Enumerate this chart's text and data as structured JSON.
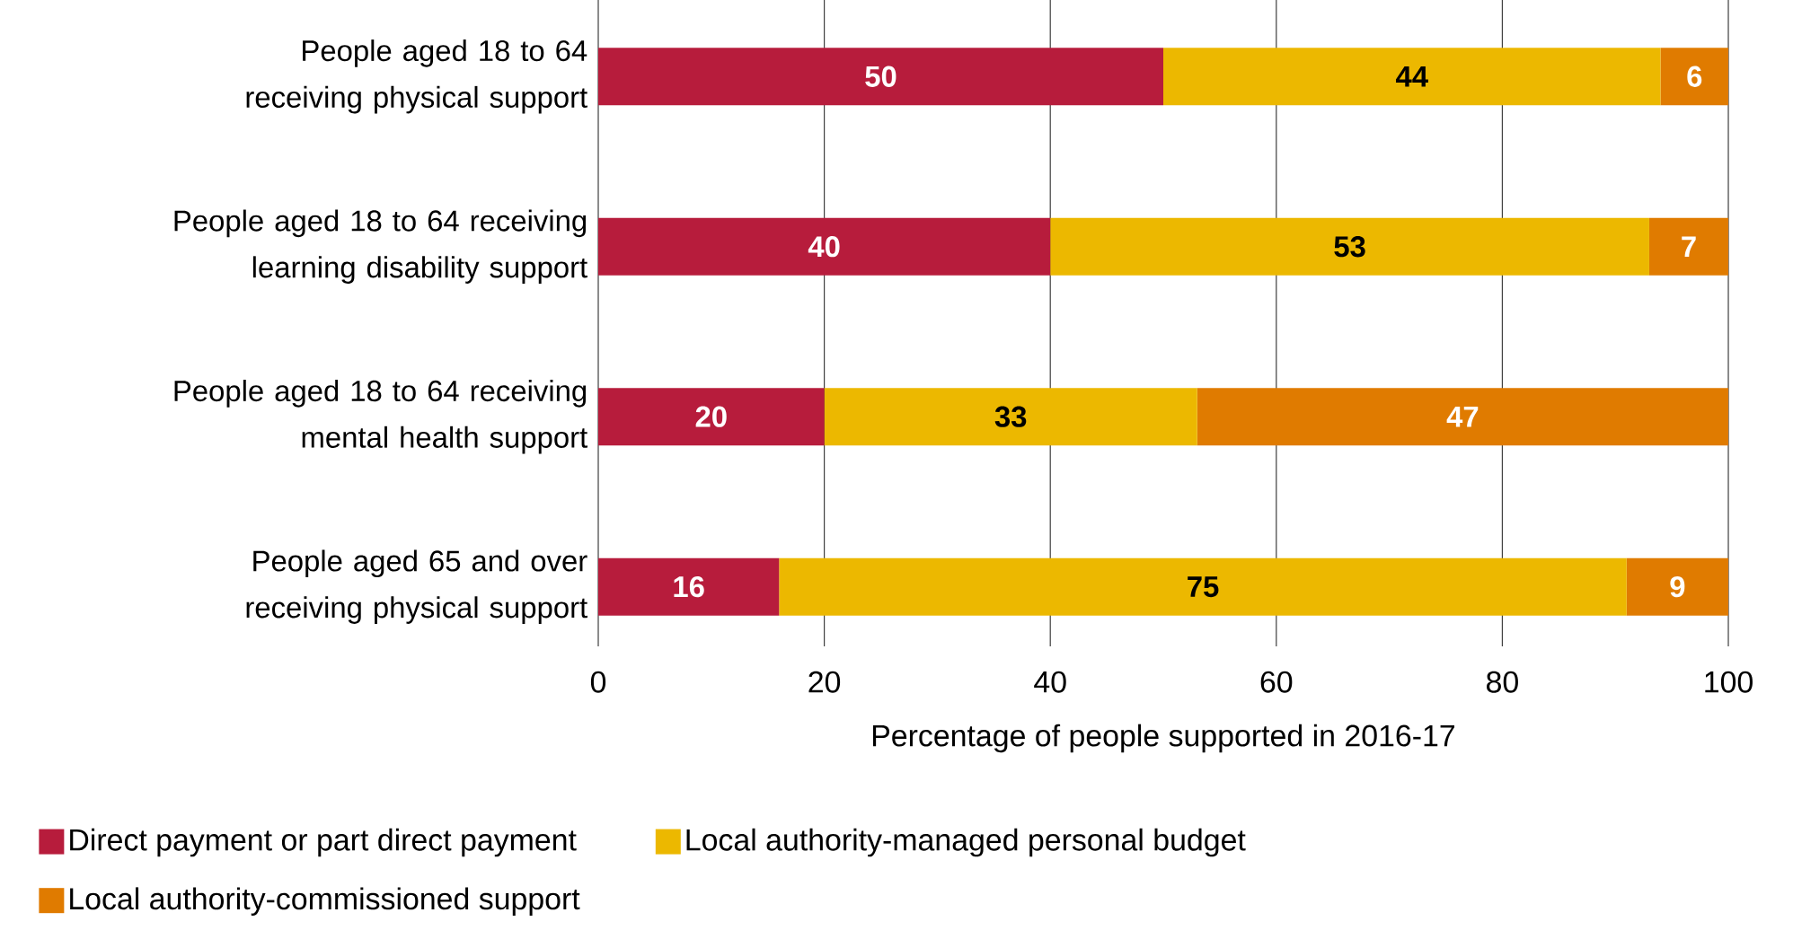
{
  "chart_data": {
    "type": "bar",
    "orientation": "horizontal",
    "stacked": true,
    "categories": [
      "People aged 18 to 64 receiving physical support",
      "People aged 18 to 64 receiving learning disability support",
      "People aged 18 to 64 receiving mental health support",
      "People aged 65 and over receiving physical support"
    ],
    "series": [
      {
        "name": "Direct payment or part direct payment",
        "color": "#b71c3c",
        "values": [
          50,
          40,
          20,
          16
        ]
      },
      {
        "name": "Local authority-managed personal budget",
        "color": "#ecb800",
        "values": [
          44,
          53,
          33,
          75
        ]
      },
      {
        "name": "Local authority-commissioned support",
        "color": "#e07b00",
        "values": [
          6,
          7,
          47,
          9
        ]
      }
    ],
    "xlabel": "Percentage of people supported in 2016-17",
    "xlim": [
      0,
      100
    ],
    "xticks": [
      0,
      20,
      40,
      60,
      80,
      100
    ],
    "grid": "x",
    "legend": "bottom",
    "data_labels": true
  }
}
